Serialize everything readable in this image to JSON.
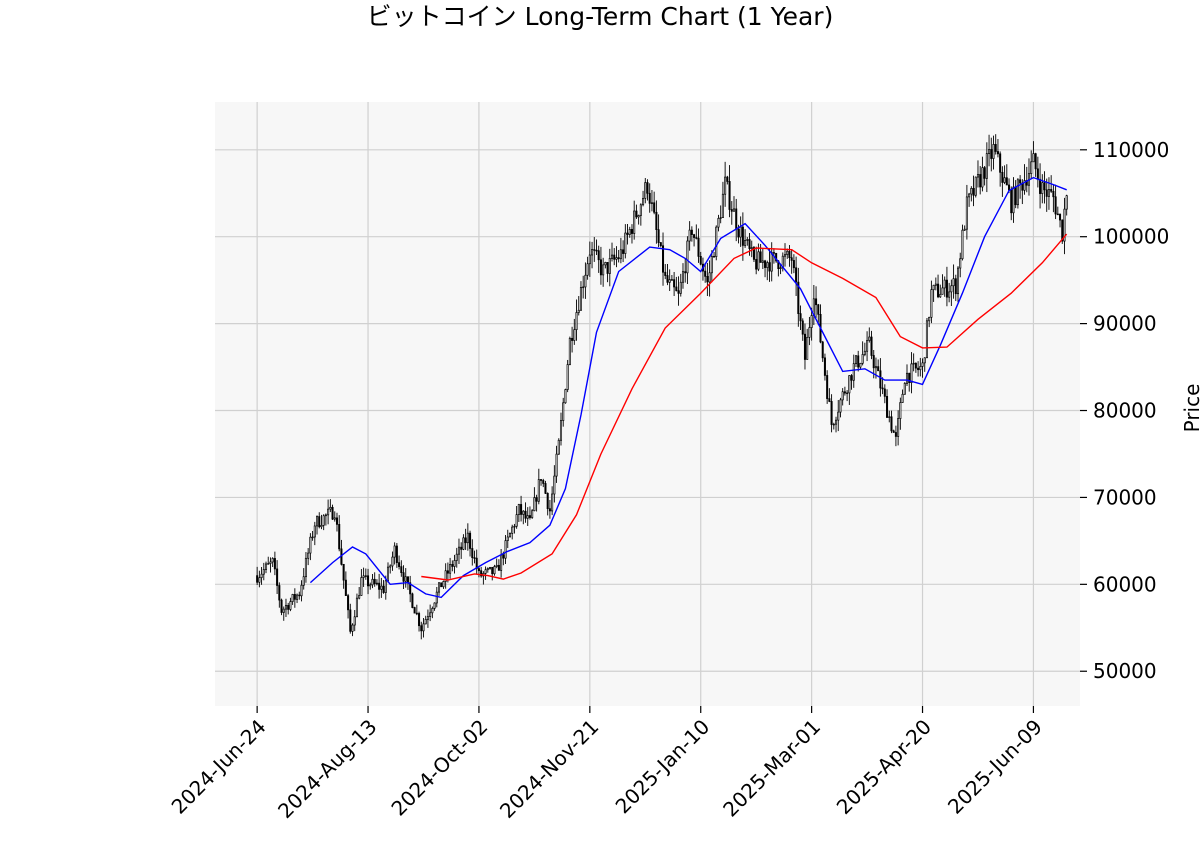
{
  "chart_data": {
    "type": "candlestick",
    "title": "ビットコイン Long-Term Chart (1 Year)",
    "ylabel": "Price",
    "ylim": [
      46000,
      115500
    ],
    "yticks": [
      50000,
      60000,
      70000,
      80000,
      90000,
      100000,
      110000
    ],
    "xticks": [
      {
        "date": "2024-06-24",
        "label": "2024-Jun-24"
      },
      {
        "date": "2024-08-13",
        "label": "2024-Aug-13"
      },
      {
        "date": "2024-10-02",
        "label": "2024-Oct-02"
      },
      {
        "date": "2024-11-21",
        "label": "2024-Nov-21"
      },
      {
        "date": "2025-01-10",
        "label": "2025-Jan-10"
      },
      {
        "date": "2025-03-01",
        "label": "2025-Mar-01"
      },
      {
        "date": "2025-04-20",
        "label": "2025-Apr-20"
      },
      {
        "date": "2025-06-09",
        "label": "2025-Jun-09"
      }
    ],
    "xlim": [
      "2024-06-05",
      "2025-06-30"
    ],
    "grid": true,
    "plot_background": "#f7f7f7",
    "grid_color": "#d0d0d0",
    "candle_color": "#000000",
    "price_path": [
      [
        "2024-06-24",
        61000
      ],
      [
        "2024-07-01",
        62500
      ],
      [
        "2024-07-05",
        57000
      ],
      [
        "2024-07-13",
        59000
      ],
      [
        "2024-07-20",
        67000
      ],
      [
        "2024-07-29",
        68500
      ],
      [
        "2024-08-05",
        54500
      ],
      [
        "2024-08-10",
        60500
      ],
      [
        "2024-08-20",
        59500
      ],
      [
        "2024-08-25",
        64000
      ],
      [
        "2024-09-06",
        55000
      ],
      [
        "2024-09-15",
        60000
      ],
      [
        "2024-09-27",
        65500
      ],
      [
        "2024-10-02",
        61000
      ],
      [
        "2024-10-10",
        61500
      ],
      [
        "2024-10-20",
        68500
      ],
      [
        "2024-10-25",
        67000
      ],
      [
        "2024-10-30",
        72500
      ],
      [
        "2024-11-03",
        68500
      ],
      [
        "2024-11-07",
        76000
      ],
      [
        "2024-11-12",
        88000
      ],
      [
        "2024-11-21",
        98500
      ],
      [
        "2024-11-27",
        96000
      ],
      [
        "2024-12-05",
        98000
      ],
      [
        "2024-12-17",
        106000
      ],
      [
        "2024-12-25",
        95000
      ],
      [
        "2024-12-31",
        93000
      ],
      [
        "2025-01-06",
        101000
      ],
      [
        "2025-01-13",
        94500
      ],
      [
        "2025-01-21",
        106000
      ],
      [
        "2025-01-27",
        101000
      ],
      [
        "2025-02-03",
        97000
      ],
      [
        "2025-02-20",
        97500
      ],
      [
        "2025-02-26",
        86000
      ],
      [
        "2025-03-02",
        94000
      ],
      [
        "2025-03-10",
        78500
      ],
      [
        "2025-03-20",
        85000
      ],
      [
        "2025-03-27",
        87500
      ],
      [
        "2025-04-08",
        76500
      ],
      [
        "2025-04-12",
        84000
      ],
      [
        "2025-04-20",
        85000
      ],
      [
        "2025-04-24",
        93500
      ],
      [
        "2025-05-05",
        94500
      ],
      [
        "2025-05-10",
        103500
      ],
      [
        "2025-05-22",
        110000
      ],
      [
        "2025-05-30",
        104000
      ],
      [
        "2025-06-09",
        108500
      ],
      [
        "2025-06-13",
        105500
      ],
      [
        "2025-06-18",
        104500
      ],
      [
        "2025-06-22",
        100500
      ],
      [
        "2025-06-24",
        105500
      ]
    ],
    "series": [
      {
        "color": "#0000ff",
        "points": [
          [
            "2024-07-18",
            60200
          ],
          [
            "2024-07-28",
            62500
          ],
          [
            "2024-08-06",
            64300
          ],
          [
            "2024-08-12",
            63500
          ],
          [
            "2024-08-23",
            60000
          ],
          [
            "2024-08-31",
            60200
          ],
          [
            "2024-09-08",
            58900
          ],
          [
            "2024-09-15",
            58500
          ],
          [
            "2024-09-25",
            61000
          ],
          [
            "2024-10-05",
            62500
          ],
          [
            "2024-10-15",
            63800
          ],
          [
            "2024-10-25",
            64800
          ],
          [
            "2024-11-03",
            66800
          ],
          [
            "2024-11-10",
            71000
          ],
          [
            "2024-11-17",
            79500
          ],
          [
            "2024-11-24",
            89000
          ],
          [
            "2024-12-04",
            96000
          ],
          [
            "2024-12-18",
            98800
          ],
          [
            "2024-12-27",
            98500
          ],
          [
            "2025-01-03",
            97500
          ],
          [
            "2025-01-10",
            96000
          ],
          [
            "2025-01-19",
            99800
          ],
          [
            "2025-01-30",
            101500
          ],
          [
            "2025-02-08",
            99000
          ],
          [
            "2025-02-24",
            94000
          ],
          [
            "2025-03-05",
            89500
          ],
          [
            "2025-03-15",
            84500
          ],
          [
            "2025-03-25",
            84800
          ],
          [
            "2025-04-03",
            83500
          ],
          [
            "2025-04-13",
            83500
          ],
          [
            "2025-04-20",
            83000
          ],
          [
            "2025-04-28",
            87500
          ],
          [
            "2025-05-08",
            93500
          ],
          [
            "2025-05-18",
            100000
          ],
          [
            "2025-05-29",
            105300
          ],
          [
            "2025-06-09",
            106800
          ],
          [
            "2025-06-18",
            106000
          ],
          [
            "2025-06-24",
            105400
          ]
        ]
      },
      {
        "color": "#ff0000",
        "points": [
          [
            "2024-09-06",
            60900
          ],
          [
            "2024-09-18",
            60500
          ],
          [
            "2024-09-30",
            61200
          ],
          [
            "2024-10-06",
            61000
          ],
          [
            "2024-10-13",
            60600
          ],
          [
            "2024-10-21",
            61300
          ],
          [
            "2024-11-04",
            63500
          ],
          [
            "2024-11-15",
            68000
          ],
          [
            "2024-11-26",
            75000
          ],
          [
            "2024-12-10",
            82500
          ],
          [
            "2024-12-25",
            89500
          ],
          [
            "2025-01-10",
            93500
          ],
          [
            "2025-01-25",
            97500
          ],
          [
            "2025-02-04",
            98700
          ],
          [
            "2025-02-20",
            98500
          ],
          [
            "2025-03-01",
            97000
          ],
          [
            "2025-03-15",
            95200
          ],
          [
            "2025-03-30",
            93000
          ],
          [
            "2025-04-10",
            88500
          ],
          [
            "2025-04-20",
            87200
          ],
          [
            "2025-05-01",
            87300
          ],
          [
            "2025-05-15",
            90500
          ],
          [
            "2025-05-30",
            93500
          ],
          [
            "2025-06-13",
            97000
          ],
          [
            "2025-06-24",
            100300
          ]
        ]
      }
    ]
  }
}
